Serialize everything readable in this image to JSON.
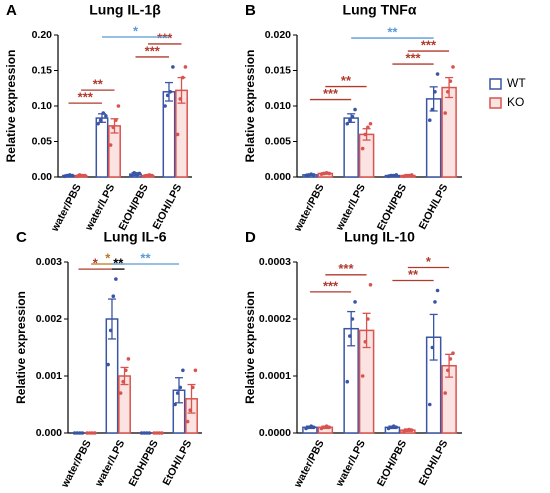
{
  "legend": [
    {
      "name": "WT",
      "color": "#3a55a6"
    },
    {
      "name": "KO",
      "color": "#d9534f"
    }
  ],
  "chart_data": [
    {
      "type": "bar",
      "panel": "A",
      "title": "Lung IL-1β",
      "y_label": "Relative expression",
      "categories": [
        "water/PBS",
        "water/LPS",
        "EtOH/PBS",
        "EtOH/LPS"
      ],
      "ylim": [
        0,
        0.2
      ],
      "yticks": [
        {
          "value": 0,
          "label": "0.00"
        },
        {
          "value": 0.05,
          "label": "0.05"
        },
        {
          "value": 0.1,
          "label": "0.10"
        },
        {
          "value": 0.15,
          "label": "0.15"
        },
        {
          "value": 0.2,
          "label": "0.20"
        }
      ],
      "series": [
        {
          "values": [
            0.002,
            0.083,
            0.004,
            0.12
          ],
          "errors": [
            0.001,
            0.006,
            0.002,
            0.013
          ],
          "points": [
            [
              0.001,
              0.002,
              0.003,
              0.002
            ],
            [
              0.075,
              0.08,
              0.09,
              0.086
            ],
            [
              0.002,
              0.006,
              0.003,
              0.005
            ],
            [
              0.1,
              0.115,
              0.12,
              0.155
            ]
          ]
        },
        {
          "values": [
            0.002,
            0.072,
            0.002,
            0.122
          ],
          "errors": [
            0.001,
            0.01,
            0.001,
            0.018
          ],
          "points": [
            [
              0.001,
              0.003,
              0.002,
              0.002
            ],
            [
              0.045,
              0.07,
              0.08,
              0.1
            ],
            [
              0.001,
              0.002,
              0.003,
              0.002
            ],
            [
              0.06,
              0.11,
              0.14,
              0.155
            ]
          ]
        }
      ],
      "annotations": [
        {
          "text": "***",
          "from": 0,
          "to": 2,
          "color": "#b03a2e"
        },
        {
          "text": "**",
          "from": 1,
          "to": 3,
          "color": "#b03a2e"
        },
        {
          "text": "***",
          "from": 4,
          "to": 6,
          "color": "#b03a2e"
        },
        {
          "text": "***",
          "from": 5,
          "to": 7,
          "color": "#b03a2e"
        },
        {
          "text": "*",
          "from": 2,
          "to": 6,
          "color": "#5b9bd5"
        }
      ]
    },
    {
      "type": "bar",
      "panel": "B",
      "title": "Lung TNFα",
      "y_label": "Relative expression",
      "categories": [
        "water/PBS",
        "water/LPS",
        "EtOH/PBS",
        "EtOH/LPS"
      ],
      "ylim": [
        0,
        0.02
      ],
      "yticks": [
        {
          "value": 0,
          "label": "0.000"
        },
        {
          "value": 0.005,
          "label": "0.005"
        },
        {
          "value": 0.01,
          "label": "0.010"
        },
        {
          "value": 0.015,
          "label": "0.015"
        },
        {
          "value": 0.02,
          "label": "0.020"
        }
      ],
      "series": [
        {
          "values": [
            0.0003,
            0.0083,
            0.0002,
            0.011
          ],
          "errors": [
            0.0001,
            0.0006,
            0.0001,
            0.0017
          ],
          "points": [
            [
              0.0002,
              0.0003,
              0.0004,
              0.0003
            ],
            [
              0.0075,
              0.008,
              0.0085,
              0.0095
            ],
            [
              0.0001,
              0.0002,
              0.0002,
              0.0003
            ],
            [
              0.008,
              0.0095,
              0.012,
              0.0145
            ]
          ]
        },
        {
          "values": [
            0.0005,
            0.006,
            0.0002,
            0.0126
          ],
          "errors": [
            0.0001,
            0.0008,
            0.0001,
            0.0014
          ],
          "points": [
            [
              0.0004,
              0.0005,
              0.0006,
              0.0005
            ],
            [
              0.004,
              0.006,
              0.007,
              0.0075
            ],
            [
              0.0001,
              0.0002,
              0.0002,
              0.0003
            ],
            [
              0.009,
              0.012,
              0.0135,
              0.0155
            ]
          ]
        }
      ],
      "annotations": [
        {
          "text": "***",
          "from": 0,
          "to": 2,
          "color": "#b03a2e"
        },
        {
          "text": "**",
          "from": 1,
          "to": 3,
          "color": "#b03a2e"
        },
        {
          "text": "***",
          "from": 4,
          "to": 6,
          "color": "#b03a2e"
        },
        {
          "text": "***",
          "from": 5,
          "to": 7,
          "color": "#b03a2e"
        },
        {
          "text": "**",
          "from": 2,
          "to": 6,
          "color": "#5b9bd5"
        }
      ]
    },
    {
      "type": "bar",
      "panel": "C",
      "title": "Lung IL-6",
      "y_label": "Relative expression",
      "categories": [
        "water/PBS",
        "water/LPS",
        "EtOH/PBS",
        "EtOH/LPS"
      ],
      "ylim": [
        0,
        0.003
      ],
      "yticks": [
        {
          "value": 0,
          "label": "0.000"
        },
        {
          "value": 0.001,
          "label": "0.001"
        },
        {
          "value": 0.002,
          "label": "0.002"
        },
        {
          "value": 0.003,
          "label": "0.003"
        }
      ],
      "series": [
        {
          "values": [
            0,
            0.002,
            0,
            0.00075
          ],
          "errors": [
            0,
            0.00035,
            0,
            0.00022
          ],
          "points": [
            [
              0,
              0,
              0,
              0
            ],
            [
              0.0012,
              0.0018,
              0.0024,
              0.0027
            ],
            [
              0,
              0,
              0,
              0
            ],
            [
              0.0005,
              0.0007,
              0.0008,
              0.0011
            ]
          ]
        },
        {
          "values": [
            0,
            0.001,
            0,
            0.0006
          ],
          "errors": [
            0,
            0.00015,
            0,
            0.00025
          ],
          "points": [
            [
              0,
              0,
              0,
              0
            ],
            [
              0.0007,
              0.0009,
              0.0011,
              0.0013
            ],
            [
              0,
              0,
              0,
              0
            ],
            [
              0.0002,
              0.0004,
              0.0008,
              0.0011
            ]
          ]
        }
      ],
      "annotations": [
        {
          "text": "*",
          "from": 0,
          "to": 2,
          "color": "#b03a2e"
        },
        {
          "text": "**",
          "from": 2,
          "to": 3,
          "color": "#000000"
        },
        {
          "text": "*",
          "from": 1,
          "to": 3,
          "color": "#b7791f"
        },
        {
          "text": "**",
          "from": 2,
          "to": 6,
          "color": "#5b9bd5"
        }
      ]
    },
    {
      "type": "bar",
      "panel": "D",
      "title": "Lung IL-10",
      "y_label": "Relative expression",
      "categories": [
        "water/PBS",
        "water/LPS",
        "EtOH/PBS",
        "EtOH/LPS"
      ],
      "ylim": [
        0,
        0.0003
      ],
      "yticks": [
        {
          "value": 0,
          "label": "0.0000"
        },
        {
          "value": 0.0001,
          "label": "0.0001"
        },
        {
          "value": 0.0002,
          "label": "0.0002"
        },
        {
          "value": 0.0003,
          "label": "0.0003"
        }
      ],
      "series": [
        {
          "values": [
            1e-05,
            0.000183,
            1e-05,
            0.000168
          ],
          "errors": [
            2e-06,
            3e-05,
            2e-06,
            4e-05
          ],
          "points": [
            [
              8e-06,
              1e-05,
              1.2e-05,
              1e-05
            ],
            [
              9e-05,
              0.00017,
              0.0002,
              0.00023
            ],
            [
              8e-06,
              1e-05,
              1.2e-05,
              1e-05
            ],
            [
              5e-05,
              0.00015,
              0.00023,
              0.00025
            ]
          ]
        },
        {
          "values": [
            1e-05,
            0.00018,
            5e-06,
            0.000118
          ],
          "errors": [
            2e-06,
            3e-05,
            2e-06,
            2e-05
          ],
          "points": [
            [
              8e-06,
              1e-05,
              1.2e-05,
              1e-05
            ],
            [
              0.0001,
              0.00016,
              0.0002,
              0.00026
            ],
            [
              3e-06,
              5e-06,
              6e-06,
              5e-06
            ],
            [
              7e-05,
              0.00011,
              0.00013,
              0.00014
            ]
          ]
        }
      ],
      "annotations": [
        {
          "text": "***",
          "from": 0,
          "to": 2,
          "color": "#b03a2e"
        },
        {
          "text": "***",
          "from": 1,
          "to": 3,
          "color": "#b03a2e"
        },
        {
          "text": "**",
          "from": 4,
          "to": 6,
          "color": "#b03a2e"
        },
        {
          "text": "*",
          "from": 5,
          "to": 7,
          "color": "#b03a2e"
        }
      ]
    }
  ]
}
